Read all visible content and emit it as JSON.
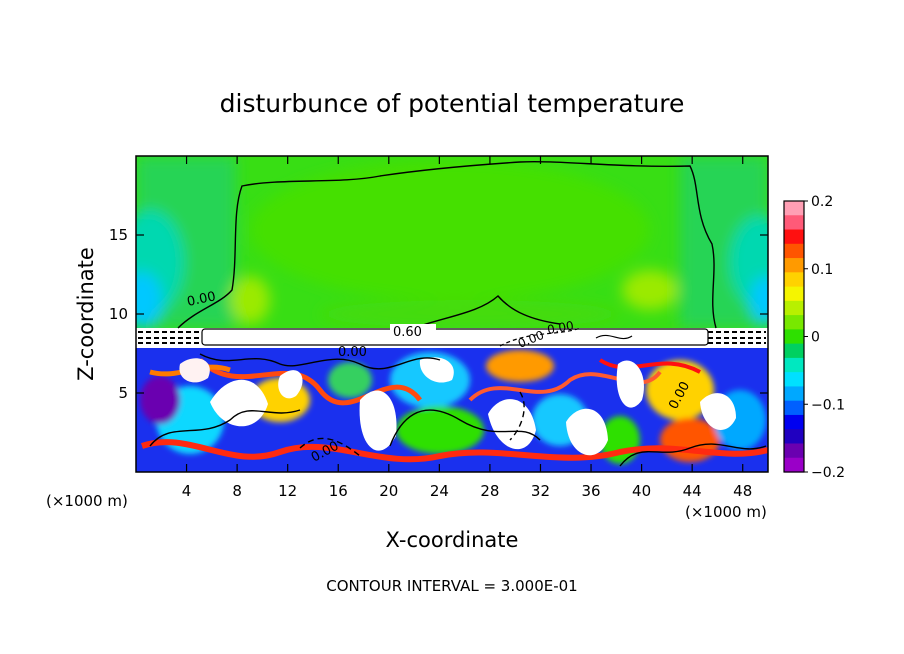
{
  "chart_data": {
    "type": "heatmap",
    "title": "disturbunce of potential temperature",
    "xlabel": "X-coordinate",
    "ylabel": "Z-coordinate",
    "x_unit_left": "(×1000 m)",
    "x_unit_right": "(×1000 m)",
    "xlim": [
      0,
      50
    ],
    "ylim": [
      0,
      20
    ],
    "x_ticks": [
      4,
      8,
      12,
      16,
      20,
      24,
      28,
      32,
      36,
      40,
      44,
      48
    ],
    "x_tick_labels": [
      "4",
      "8",
      "12",
      "16",
      "20",
      "24",
      "28",
      "32",
      "36",
      "40",
      "44",
      "48"
    ],
    "y_ticks": [
      5,
      10,
      15
    ],
    "y_tick_labels": [
      "5",
      "10",
      "15"
    ],
    "colorbar": {
      "min": -0.2,
      "max": 0.2,
      "ticks": [
        0.2,
        0.1,
        0,
        -0.1,
        -0.2
      ],
      "tick_labels": [
        "0.2",
        "0.1",
        "0",
        "−0.1",
        "−0.2"
      ],
      "colors": [
        "#ff9fb4",
        "#ff5a78",
        "#ff1010",
        "#ff5500",
        "#ff9a00",
        "#ffd200",
        "#f5f500",
        "#b8f000",
        "#78e800",
        "#2ee000",
        "#00d060",
        "#00e8c0",
        "#00e0ff",
        "#00a8ff",
        "#0060ff",
        "#0000f0",
        "#2000c0",
        "#6a00b0",
        "#9a00c8"
      ]
    },
    "contour_labels": [
      "0.00",
      "0.60",
      "0.00",
      "0.00",
      "0.00",
      "0.00",
      "0.00"
    ],
    "annotation": "CONTOUR INTERVAL = 3.000E-01",
    "grid": false
  }
}
